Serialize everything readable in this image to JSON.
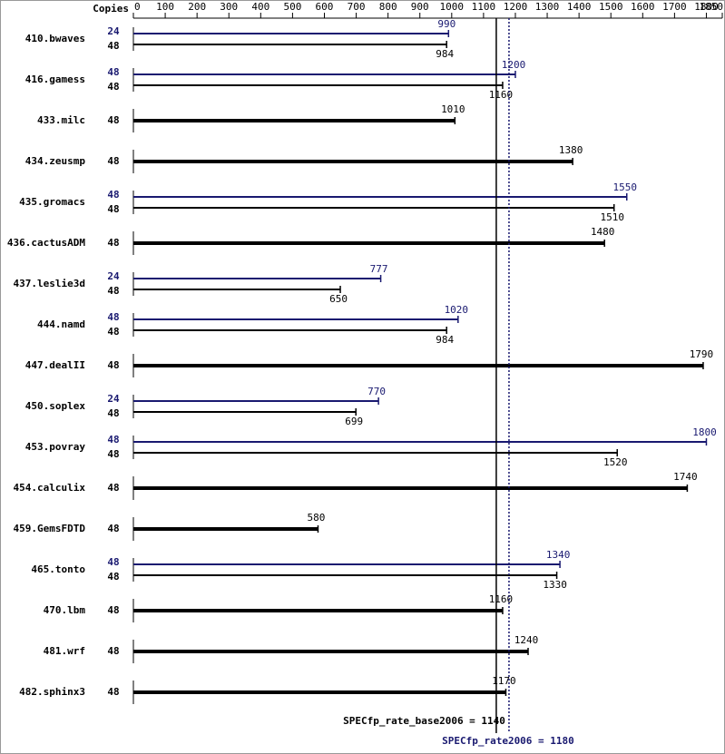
{
  "chart_data": {
    "type": "bar",
    "copies_header": "Copies",
    "categories": [
      "410.bwaves",
      "416.gamess",
      "433.milc",
      "434.zeusmp",
      "435.gromacs",
      "436.cactusADM",
      "437.leslie3d",
      "444.namd",
      "447.dealII",
      "450.soplex",
      "453.povray",
      "454.calculix",
      "459.GemsFDTD",
      "465.tonto",
      "470.lbm",
      "481.wrf",
      "482.sphinx3"
    ],
    "base": {
      "color": "#000000",
      "copies": [
        48,
        48,
        48,
        48,
        48,
        48,
        48,
        48,
        48,
        48,
        48,
        48,
        48,
        48,
        48,
        48,
        48
      ],
      "values": [
        984,
        1160,
        1010,
        1380,
        1510,
        1480,
        650,
        984,
        1790,
        699,
        1520,
        1740,
        580,
        1330,
        1160,
        1240,
        1170
      ]
    },
    "peak": {
      "color": "#191970",
      "copies": [
        24,
        48,
        null,
        null,
        48,
        null,
        24,
        48,
        null,
        24,
        48,
        null,
        null,
        48,
        null,
        null,
        null
      ],
      "values": [
        990,
        1200,
        null,
        null,
        1550,
        null,
        777,
        1020,
        null,
        770,
        1800,
        null,
        null,
        1340,
        null,
        null,
        null
      ]
    },
    "xlim": [
      0,
      1850
    ],
    "xticks": [
      0,
      100,
      200,
      300,
      400,
      500,
      600,
      700,
      800,
      900,
      1000,
      1100,
      1200,
      1300,
      1400,
      1500,
      1600,
      1700,
      1800,
      1850
    ],
    "base_reference": {
      "value": 1140,
      "label": "SPECfp_rate_base2006 = 1140"
    },
    "peak_reference": {
      "value": 1180,
      "label": "SPECfp_rate2006 = 1180"
    }
  }
}
